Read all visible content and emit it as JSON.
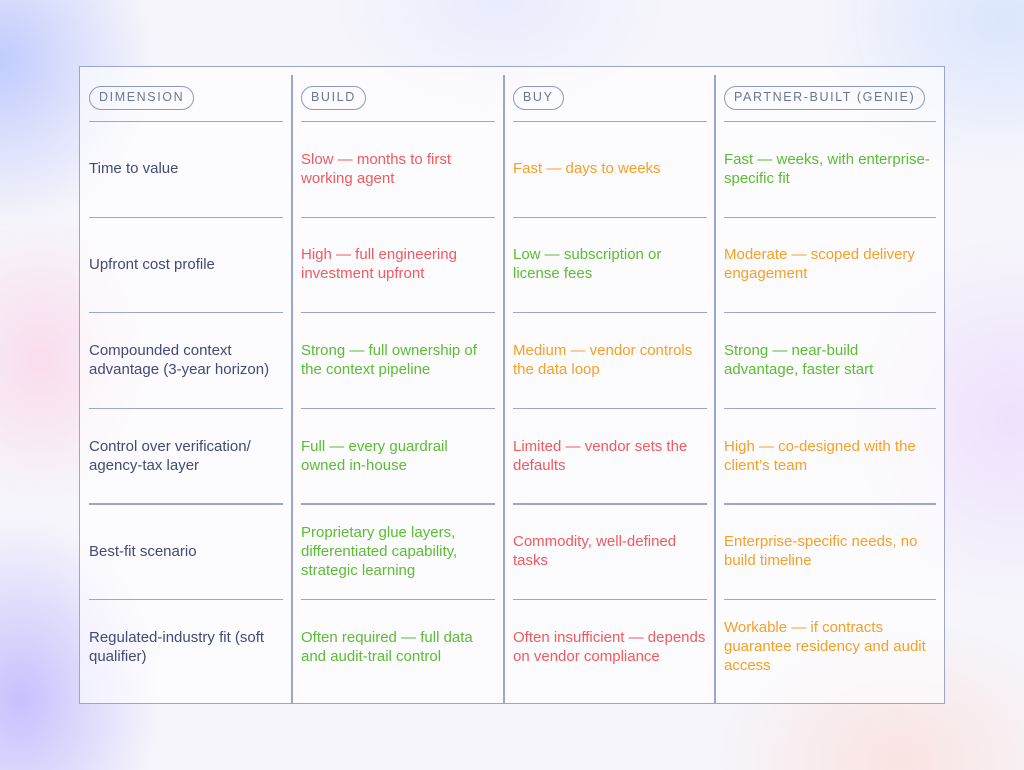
{
  "colors": {
    "red": "#f15a5e",
    "orange": "#f5a027",
    "green": "#5bbd32",
    "dimension_text": "#424a77",
    "border": "#9aa6cc"
  },
  "headers": {
    "dimension": "DIMENSION",
    "build": "BUILD",
    "buy": "BUY",
    "partner": "PARTNER-BUILT (GENIE)"
  },
  "rows": [
    {
      "dimension": "Time to value",
      "build": {
        "text": "Slow — months to first working agent",
        "tone": "red"
      },
      "buy": {
        "text": "Fast — days to weeks",
        "tone": "orange"
      },
      "partner": {
        "text": "Fast — weeks, with enterprise-specific fit",
        "tone": "green"
      }
    },
    {
      "dimension": "Upfront cost profile",
      "build": {
        "text": "High — full engineering investment upfront",
        "tone": "red"
      },
      "buy": {
        "text": "Low — subscription or license fees",
        "tone": "green"
      },
      "partner": {
        "text": "Moderate — scoped delivery engagement",
        "tone": "orange"
      }
    },
    {
      "dimension": "Compounded context advantage (3-year horizon)",
      "build": {
        "text": "Strong — full ownership of the context pipeline",
        "tone": "green"
      },
      "buy": {
        "text": "Medium — vendor controls the data loop",
        "tone": "orange"
      },
      "partner": {
        "text": "Strong — near-build advantage, faster start",
        "tone": "green"
      }
    },
    {
      "dimension": "Control over verification/ agency-tax layer",
      "build": {
        "text": "Full — every guardrail owned in-house",
        "tone": "green"
      },
      "buy": {
        "text": "Limited — vendor sets the defaults",
        "tone": "red"
      },
      "partner": {
        "text": "High — co-designed with the client’s team",
        "tone": "orange"
      }
    },
    {
      "dimension": "Best-fit scenario",
      "build": {
        "text": "Proprietary glue layers, differentiated capability, strategic learning",
        "tone": "green"
      },
      "buy": {
        "text": "Commodity, well-defined tasks",
        "tone": "red"
      },
      "partner": {
        "text": "Enterprise-specific needs, no build timeline",
        "tone": "orange"
      }
    },
    {
      "dimension": "Regulated-industry fit (soft qualifier)",
      "build": {
        "text": "Often required — full data and audit-trail control",
        "tone": "green"
      },
      "buy": {
        "text": "Often insufficient — depends on vendor compliance",
        "tone": "red"
      },
      "partner": {
        "text": "Workable — if contracts guarantee residency and audit access",
        "tone": "orange"
      }
    }
  ]
}
